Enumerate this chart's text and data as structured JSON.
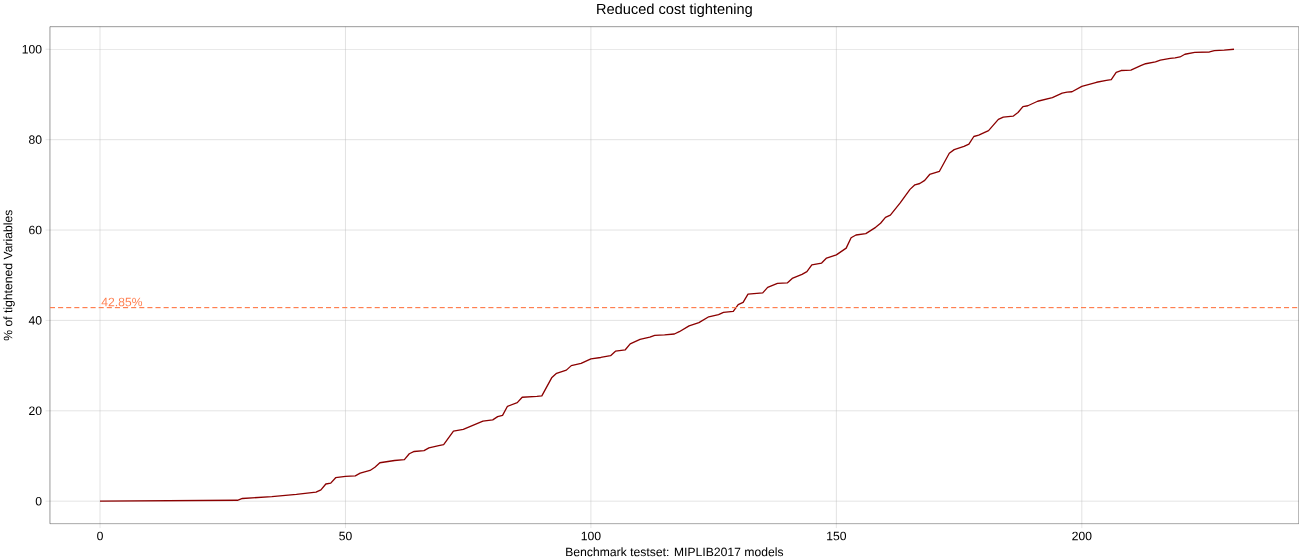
{
  "chart_data": {
    "type": "line",
    "title": "Reduced cost tightening",
    "xlabel": "Benchmark testset: MIPLIB2017 models",
    "ylabel": "% of tightened Variables",
    "x": [
      0,
      28,
      29,
      35,
      40,
      44,
      45,
      46,
      47,
      48,
      50,
      52,
      53,
      55,
      56,
      57,
      60,
      62,
      63,
      64,
      66,
      67,
      69,
      70,
      72,
      74,
      78,
      80,
      81,
      82,
      83,
      85,
      86,
      89,
      90,
      92,
      93,
      95,
      96,
      98,
      100,
      102,
      104,
      105,
      107,
      108,
      110,
      112,
      113,
      115,
      117,
      118,
      120,
      122,
      124,
      126,
      127,
      129,
      130,
      131,
      132,
      135,
      136,
      138,
      140,
      141,
      143,
      144,
      145,
      147,
      148,
      150,
      152,
      153,
      154,
      156,
      158,
      159,
      160,
      161,
      163,
      165,
      166,
      167,
      168,
      169,
      171,
      173,
      174,
      176,
      177,
      178,
      179,
      181,
      183,
      184,
      186,
      187,
      188,
      189,
      191,
      194,
      196,
      197,
      198,
      200,
      203,
      205,
      206,
      207,
      208,
      210,
      212,
      213,
      215,
      216,
      218,
      219,
      220,
      221,
      223,
      226,
      227,
      229,
      231
    ],
    "series": [
      {
        "color": "#8b0000",
        "values": [
          0,
          0.2,
          0.6,
          1,
          1.5,
          2,
          2.5,
          3.8,
          4,
          5.2,
          5.5,
          5.6,
          6.2,
          6.8,
          7.5,
          8.5,
          9,
          9.2,
          10.5,
          11,
          11.2,
          11.8,
          12.3,
          12.5,
          15.5,
          15.9,
          17.7,
          18,
          18.7,
          19,
          21,
          21.8,
          23,
          23.2,
          23.3,
          27.3,
          28.3,
          29,
          30,
          30.5,
          31.5,
          31.8,
          32.2,
          33.2,
          33.5,
          34.8,
          35.8,
          36.3,
          36.7,
          36.8,
          37,
          37.5,
          38.8,
          39.5,
          40.8,
          41.3,
          41.8,
          42,
          43.5,
          44,
          45.8,
          46.1,
          47.3,
          48.2,
          48.3,
          49.3,
          50.2,
          50.8,
          52.3,
          52.7,
          53.8,
          54.5,
          56,
          58.3,
          58.9,
          59.2,
          60.6,
          61.5,
          62.8,
          63.3,
          66,
          69,
          70,
          70.3,
          71,
          72.3,
          73,
          77,
          77.8,
          78.5,
          79,
          80.7,
          81,
          82,
          84.5,
          85,
          85.2,
          86,
          87.3,
          87.5,
          88.5,
          89.3,
          90.3,
          90.5,
          90.6,
          91.8,
          92.7,
          93.1,
          93.3,
          94.9,
          95.3,
          95.4,
          96.4,
          96.8,
          97.2,
          97.6,
          98,
          98.1,
          98.3,
          98.9,
          99.3,
          99.4,
          99.7,
          99.8,
          100
        ]
      }
    ],
    "xlim": [
      -10.2,
      244.2
    ],
    "ylim": [
      -5,
      105
    ],
    "xticks": [
      0,
      50,
      100,
      150,
      200
    ],
    "yticks": [
      0,
      20,
      40,
      60,
      80,
      100
    ],
    "grid": true,
    "ref_lines": [
      {
        "axis": "y",
        "value": 42.85,
        "label": "42.85%",
        "color": "#ff7f50",
        "line_style": "dashed"
      }
    ]
  }
}
